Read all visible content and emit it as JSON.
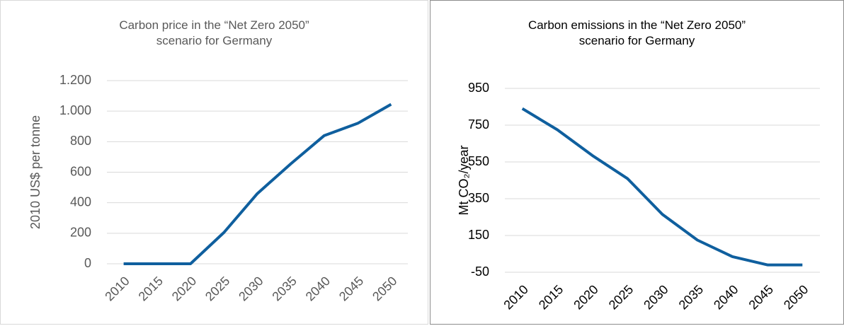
{
  "chart_data": [
    {
      "type": "line",
      "title": "Carbon price in the “Net Zero 2050” scenario for Germany",
      "y_label": "2010 US$ per tonne",
      "categories": [
        "2010",
        "2015",
        "2020",
        "2025",
        "2030",
        "2035",
        "2040",
        "2045",
        "2050"
      ],
      "series": [
        {
          "color": "#0f5f9e",
          "values": [
            0,
            0,
            0,
            205,
            460,
            655,
            840,
            920,
            1045
          ]
        }
      ],
      "ylim": [
        0,
        1200
      ],
      "yticks": [
        0,
        200,
        400,
        600,
        800,
        {
          "value": 1000,
          "label": "1.000"
        },
        {
          "value": 1200,
          "label": "1.200"
        }
      ],
      "grid": true
    },
    {
      "type": "line",
      "title": "Carbon emissions in the “Net Zero 2050” scenario for Germany",
      "y_label": "Mt CO₂/year",
      "categories": [
        "2010",
        "2015",
        "2020",
        "2025",
        "2030",
        "2035",
        "2040",
        "2045",
        "2050"
      ],
      "series": [
        {
          "color": "#0f5f9e",
          "values": [
            840,
            725,
            585,
            460,
            265,
            125,
            35,
            -10,
            -10
          ]
        }
      ],
      "ylim": [
        -50,
        950
      ],
      "yticks": [
        -50,
        150,
        350,
        550,
        750,
        950
      ],
      "grid": true
    }
  ]
}
